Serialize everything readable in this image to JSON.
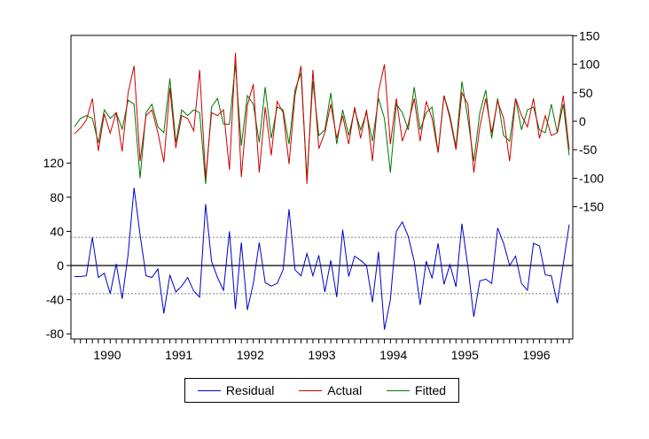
{
  "chart_data": {
    "type": "line",
    "title": "",
    "xlabel": "",
    "x_tick_labels": [
      "1990",
      "1991",
      "1992",
      "1993",
      "1994",
      "1995",
      "1996"
    ],
    "left_axis": {
      "ticks": [
        -80,
        -40,
        0,
        40,
        80,
        120
      ],
      "range": [
        -80,
        120
      ]
    },
    "right_axis": {
      "ticks": [
        -150,
        -100,
        -50,
        0,
        50,
        100,
        150
      ],
      "range": [
        -150,
        150
      ]
    },
    "reference_lines": {
      "zero": 0,
      "upper": 33,
      "lower": -33
    },
    "legend_position": "bottom-center",
    "series": [
      {
        "name": "Residual",
        "axis": "left",
        "color": "#0000cc",
        "values": [
          -13,
          -13,
          -12,
          33,
          -14,
          -9,
          -33,
          2,
          -39,
          13,
          91,
          36,
          -12,
          -14,
          -4,
          -56,
          -11,
          -31,
          -24,
          -14,
          -30,
          -37,
          72,
          5,
          -14,
          -29,
          40,
          -51,
          27,
          -52,
          -21,
          27,
          -20,
          -24,
          -21,
          -5,
          66,
          -5,
          -12,
          14,
          -12,
          12,
          -31,
          6,
          -37,
          42,
          -13,
          11,
          6,
          0,
          -43,
          16,
          -75,
          -40,
          40,
          51,
          34,
          5,
          -46,
          5,
          -15,
          26,
          -22,
          1,
          -25,
          49,
          -1,
          -60,
          -18,
          -16,
          -21,
          44,
          26,
          0,
          11,
          -21,
          -29,
          26,
          23,
          -11,
          -12,
          -44,
          2,
          48
        ]
      },
      {
        "name": "Actual",
        "axis": "right",
        "color": "#cc0000",
        "values": [
          -22,
          -12,
          2,
          40,
          -52,
          13,
          -21,
          16,
          -53,
          50,
          97,
          -70,
          10,
          20,
          -20,
          -72,
          58,
          -47,
          10,
          5,
          -17,
          90,
          -100,
          15,
          10,
          20,
          -85,
          120,
          -98,
          28,
          65,
          -90,
          25,
          -60,
          35,
          15,
          -75,
          45,
          97,
          -110,
          90,
          -48,
          -20,
          30,
          -30,
          10,
          -40,
          25,
          -30,
          20,
          -70,
          52,
          100,
          -40,
          40,
          -35,
          -5,
          40,
          -35,
          35,
          5,
          -55,
          45,
          5,
          -50,
          50,
          30,
          -90,
          -10,
          40,
          -20,
          35,
          5,
          -70,
          40,
          10,
          -10,
          40,
          -30,
          10,
          -25,
          -20,
          45,
          -50
        ],
        "fitted_values": [
          -10,
          5,
          10,
          5,
          -38,
          20,
          5,
          15,
          -14,
          37,
          30,
          -100,
          15,
          30,
          -10,
          -20,
          75,
          -37,
          20,
          10,
          20,
          15,
          -110,
          25,
          40,
          -5,
          -5,
          100,
          -43,
          45,
          30,
          -37,
          60,
          -30,
          25,
          20,
          -40,
          55,
          85,
          -100,
          70,
          -25,
          -15,
          50,
          -40,
          20,
          -25,
          20,
          -15,
          15,
          -35,
          40,
          5,
          -90,
          30,
          15,
          -15,
          60,
          -15,
          15,
          25,
          -55,
          45,
          10,
          -45,
          70,
          5,
          -70,
          15,
          55,
          -30,
          40,
          -25,
          -35,
          40,
          -15,
          20,
          25,
          -15,
          -20,
          30,
          -20,
          30,
          -60
        ]
      },
      {
        "name": "Fitted",
        "axis": "right",
        "color": "#007700"
      }
    ]
  }
}
